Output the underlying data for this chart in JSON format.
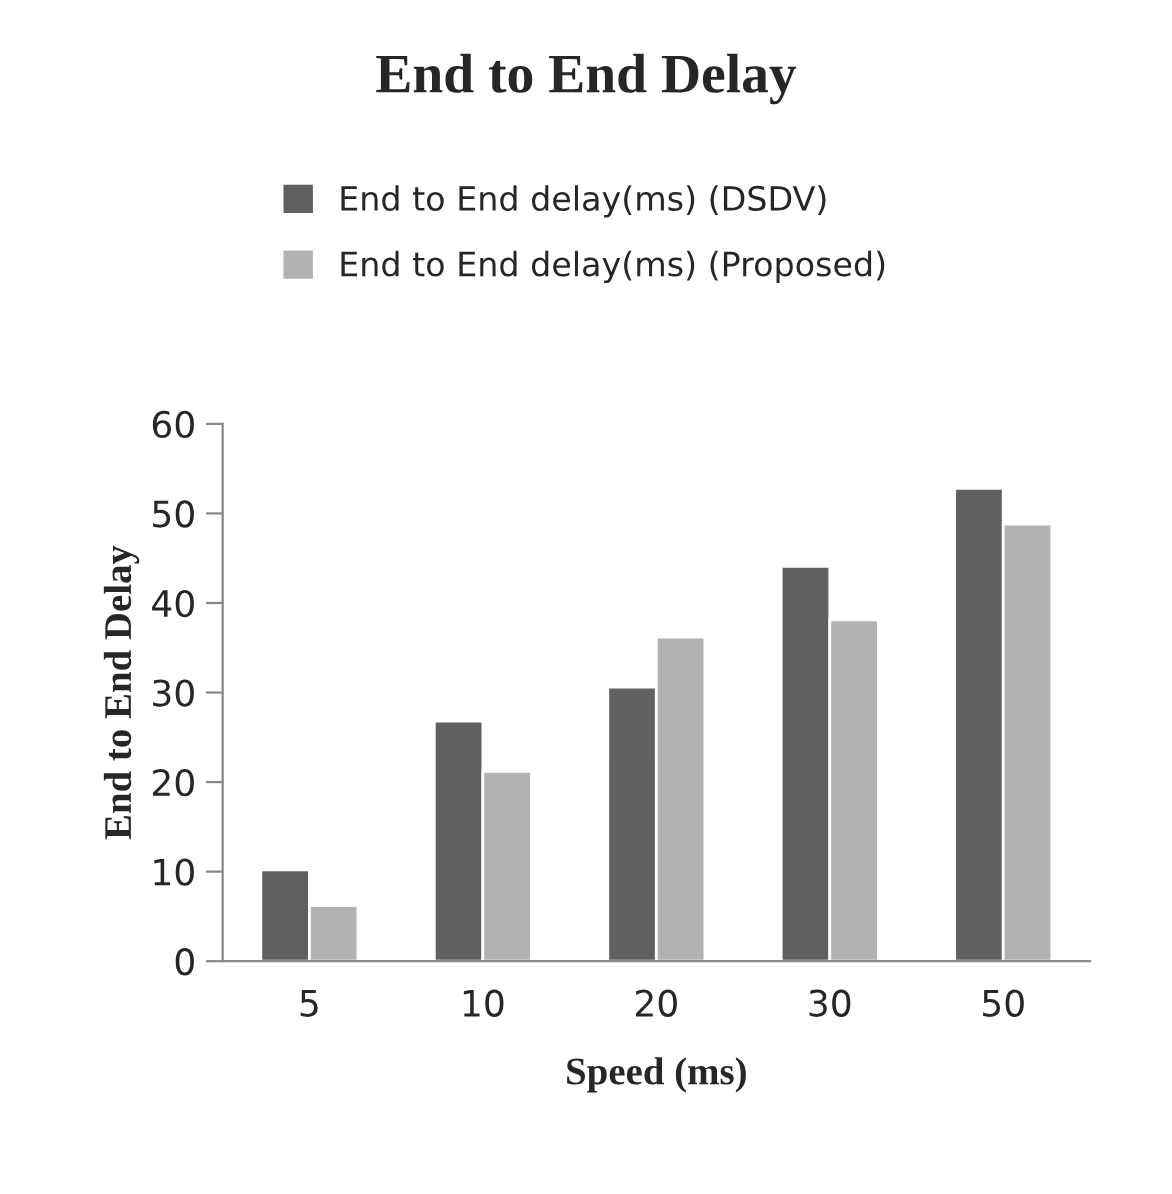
{
  "chart_data": {
    "type": "bar",
    "title": "End to End Delay",
    "xlabel": "Speed (ms)",
    "ylabel": "End to End Delay",
    "categories": [
      "5",
      "10",
      "20",
      "30",
      "50"
    ],
    "series": [
      {
        "name": "End to End delay(ms) (DSDV)",
        "color": "#606060",
        "values": [
          10.2,
          26.8,
          30.6,
          44.1,
          52.8
        ]
      },
      {
        "name": "End to End delay(ms) (Proposed)",
        "color": "#b2b2b2",
        "values": [
          6.2,
          21.2,
          36.2,
          38.1,
          48.8
        ]
      }
    ],
    "ylim": [
      0,
      60
    ],
    "yticks": [
      0,
      10,
      20,
      30,
      40,
      50,
      60
    ],
    "grid": false,
    "legend": "top"
  }
}
